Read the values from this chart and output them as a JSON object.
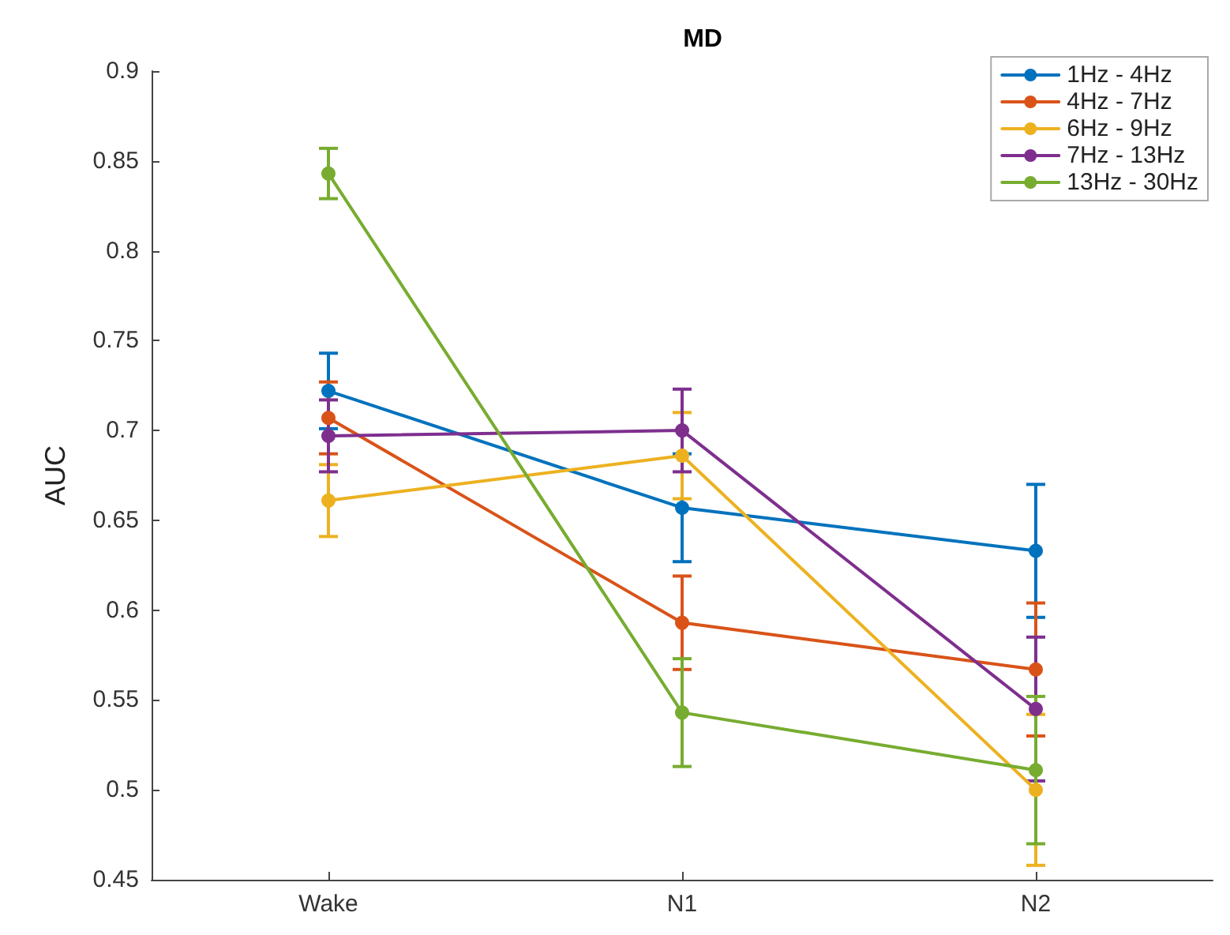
{
  "chart_data": {
    "type": "line",
    "title": "MD",
    "ylabel": "AUC",
    "categories": [
      "Wake",
      "N1",
      "N2"
    ],
    "ylim": [
      0.45,
      0.9
    ],
    "yticks": [
      0.45,
      0.5,
      0.55,
      0.6,
      0.65,
      0.7,
      0.75,
      0.8,
      0.85,
      0.9
    ],
    "grid": false,
    "legend": "top right",
    "marker": "circle",
    "line_style": "solid",
    "series": [
      {
        "name": "1Hz - 4Hz",
        "color": "#0072bd",
        "values": [
          0.722,
          0.657,
          0.633
        ],
        "errors": [
          0.021,
          0.03,
          0.037
        ]
      },
      {
        "name": "4Hz - 7Hz",
        "color": "#d95319",
        "values": [
          0.707,
          0.593,
          0.567
        ],
        "errors": [
          0.02,
          0.026,
          0.037
        ]
      },
      {
        "name": "6Hz - 9Hz",
        "color": "#edb120",
        "values": [
          0.661,
          0.686,
          0.5
        ],
        "errors": [
          0.02,
          0.024,
          0.042
        ]
      },
      {
        "name": "7Hz - 13Hz",
        "color": "#7e2f8e",
        "values": [
          0.697,
          0.7,
          0.545
        ],
        "errors": [
          0.02,
          0.023,
          0.04
        ]
      },
      {
        "name": "13Hz - 30Hz",
        "color": "#77ac30",
        "values": [
          0.843,
          0.543,
          0.511
        ],
        "errors": [
          0.014,
          0.03,
          0.041
        ]
      }
    ]
  }
}
